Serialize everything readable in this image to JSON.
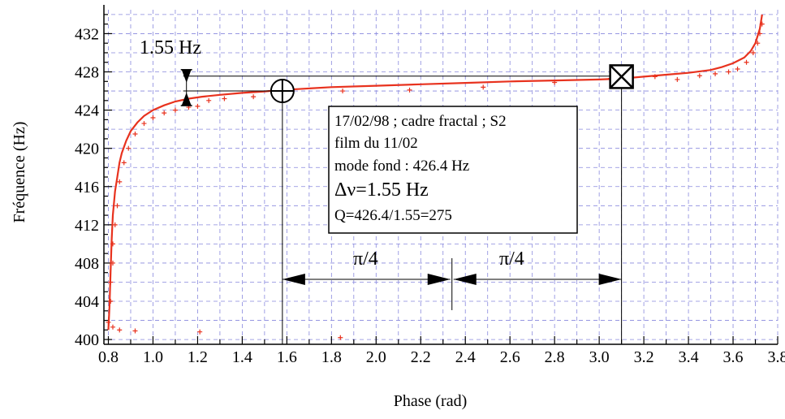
{
  "chart_data": {
    "type": "line",
    "title": "",
    "xlabel": "Phase (rad)",
    "ylabel": "Fréquence (Hz)",
    "xlim": [
      0.78,
      3.8
    ],
    "ylim": [
      399.5,
      434.5
    ],
    "xticks": [
      "0.8",
      "1.0",
      "1.2",
      "1.4",
      "1.6",
      "1.8",
      "2.0",
      "2.2",
      "2.4",
      "2.6",
      "2.8",
      "3.0",
      "3.2",
      "3.4",
      "3.6",
      "3.8"
    ],
    "yticks": [
      "400",
      "404",
      "408",
      "412",
      "416",
      "420",
      "424",
      "428",
      "432"
    ],
    "grid": true,
    "colors": {
      "series": "#e8321e",
      "grid": "#8888dd",
      "axis": "#000000"
    },
    "series": [
      {
        "values_x": [
          0.8,
          0.805,
          0.81,
          0.815,
          0.82,
          0.83,
          0.84,
          0.85,
          0.86,
          0.88,
          0.9,
          0.93,
          0.96,
          1.0,
          1.05,
          1.1,
          1.16,
          1.22,
          1.3,
          1.4,
          1.5,
          1.57,
          1.65,
          1.8,
          2.0,
          2.2,
          2.4,
          2.6,
          2.8,
          3.0,
          3.1,
          3.2,
          3.3,
          3.4,
          3.5,
          3.55,
          3.6,
          3.65,
          3.68,
          3.7,
          3.72,
          3.73
        ],
        "values_y": [
          401.0,
          403.5,
          407.0,
          410.5,
          413.0,
          415.5,
          417.0,
          418.5,
          419.5,
          420.8,
          421.8,
          422.7,
          423.4,
          424.0,
          424.5,
          424.9,
          425.2,
          425.4,
          425.6,
          425.8,
          425.95,
          426.1,
          426.2,
          426.4,
          426.55,
          426.7,
          426.85,
          427.0,
          427.1,
          427.2,
          427.3,
          427.5,
          427.7,
          427.9,
          428.2,
          428.5,
          428.9,
          429.5,
          430.2,
          431.0,
          432.5,
          434.0
        ]
      }
    ],
    "scatter_points": [
      {
        "x": 0.8,
        "y": 401.8
      },
      {
        "x": 0.82,
        "y": 401.3
      },
      {
        "x": 0.85,
        "y": 401.0
      },
      {
        "x": 0.92,
        "y": 400.9
      },
      {
        "x": 1.21,
        "y": 400.8
      },
      {
        "x": 1.84,
        "y": 400.2
      },
      {
        "x": 0.81,
        "y": 404.0
      },
      {
        "x": 0.81,
        "y": 406.0
      },
      {
        "x": 0.82,
        "y": 408.0
      },
      {
        "x": 0.82,
        "y": 410.0
      },
      {
        "x": 0.83,
        "y": 412.0
      },
      {
        "x": 0.84,
        "y": 414.0
      },
      {
        "x": 0.85,
        "y": 416.5
      },
      {
        "x": 0.87,
        "y": 418.5
      },
      {
        "x": 0.89,
        "y": 420.0
      },
      {
        "x": 0.92,
        "y": 421.5
      },
      {
        "x": 0.96,
        "y": 422.6
      },
      {
        "x": 1.0,
        "y": 423.2
      },
      {
        "x": 1.05,
        "y": 423.7
      },
      {
        "x": 1.1,
        "y": 424.0
      },
      {
        "x": 1.16,
        "y": 424.3
      },
      {
        "x": 1.2,
        "y": 424.4
      },
      {
        "x": 1.25,
        "y": 425.0
      },
      {
        "x": 1.32,
        "y": 425.2
      },
      {
        "x": 1.45,
        "y": 425.4
      },
      {
        "x": 1.62,
        "y": 425.7
      },
      {
        "x": 1.85,
        "y": 426.0
      },
      {
        "x": 2.15,
        "y": 426.1
      },
      {
        "x": 2.48,
        "y": 426.4
      },
      {
        "x": 2.8,
        "y": 426.9
      },
      {
        "x": 3.05,
        "y": 427.3
      },
      {
        "x": 3.25,
        "y": 427.5
      },
      {
        "x": 3.35,
        "y": 427.2
      },
      {
        "x": 3.45,
        "y": 427.6
      },
      {
        "x": 3.52,
        "y": 427.8
      },
      {
        "x": 3.58,
        "y": 428.0
      },
      {
        "x": 3.62,
        "y": 428.3
      },
      {
        "x": 3.66,
        "y": 429.0
      },
      {
        "x": 3.69,
        "y": 430.0
      },
      {
        "x": 3.71,
        "y": 431.0
      },
      {
        "x": 3.72,
        "y": 432.0
      },
      {
        "x": 3.73,
        "y": 433.0
      }
    ],
    "markers": [
      {
        "kind": "circle-plus",
        "x": 1.58,
        "y": 426.0
      },
      {
        "kind": "box-cross",
        "x": 3.1,
        "y": 427.5
      }
    ],
    "annotations": {
      "bandwidth_label": "1.55 Hz",
      "bandwidth_x": 1.15,
      "bandwidth_y_low": 426.0,
      "bandwidth_y_high": 427.55,
      "arrow_left_label": "π/4",
      "arrow_right_label": "π/4",
      "arrow_y": 406.3,
      "arrow_x_start": 1.58,
      "arrow_x_mid": 2.34,
      "arrow_x_end": 3.1
    },
    "info_box": {
      "line1": "17/02/98 ; cadre fractal ; S2",
      "line2": "film du 11/02",
      "line3": "mode fond : 426.4 Hz",
      "line4": "Δν=1.55 Hz",
      "line5": "Q=426.4/1.55=275"
    }
  }
}
